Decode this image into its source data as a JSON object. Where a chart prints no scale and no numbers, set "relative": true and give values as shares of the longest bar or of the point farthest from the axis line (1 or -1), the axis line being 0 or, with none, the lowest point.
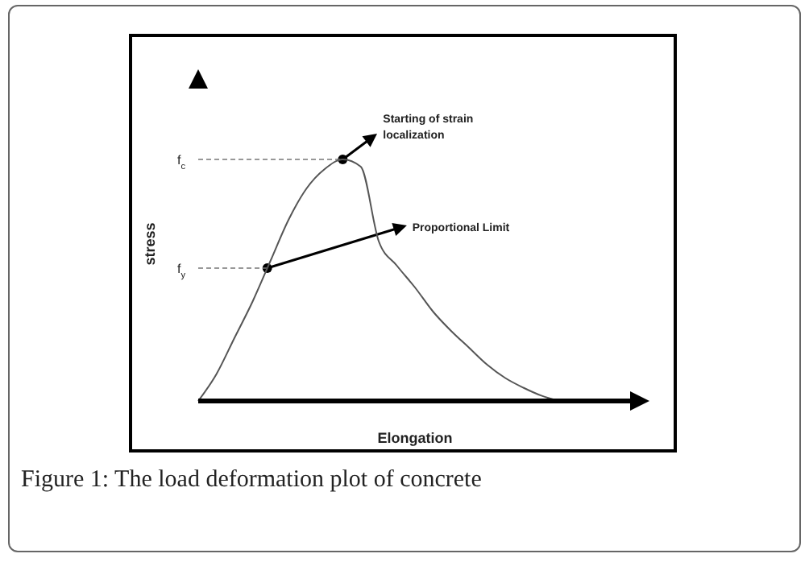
{
  "chart_data": {
    "type": "line",
    "title": "Figure 1: The load deformation plot of concrete",
    "xlabel": "Elongation",
    "ylabel": "stress",
    "relative": true,
    "color": "#555555",
    "marker": "none",
    "line_style": "solid",
    "categories": [
      null,
      null,
      null,
      null,
      null,
      null,
      null,
      null,
      null,
      null,
      null,
      null,
      null,
      null,
      null,
      null,
      null,
      null,
      null,
      null,
      null,
      null,
      null,
      null,
      null
    ],
    "values": [
      0,
      0.11,
      0.26,
      0.41,
      0.58,
      0.75,
      0.88,
      0.96,
      1.0,
      0.97,
      0.66,
      0.56,
      0.47,
      0.37,
      0.29,
      0.22,
      0.15,
      0.095,
      0.055,
      0.022,
      0,
      null,
      null,
      null,
      null
    ],
    "ref_lines": [
      {
        "axis": "y",
        "value": 1.0,
        "label": "f$_{c}$",
        "line_style": "dashed"
      },
      {
        "axis": "y",
        "value": 0.55,
        "label": "f$_{y}$",
        "line_style": "dashed"
      }
    ],
    "annotations": [
      "Starting of strain\nlocalization",
      "Proportional Limit"
    ]
  }
}
